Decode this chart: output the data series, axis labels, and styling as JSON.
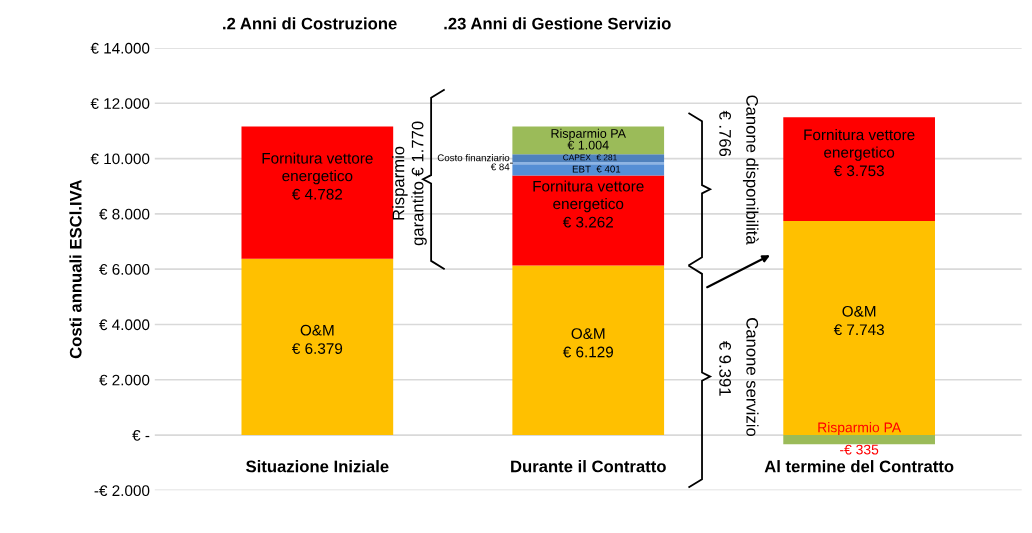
{
  "chart_data": {
    "type": "bar",
    "stacked": true,
    "title": ".2 Anni di Costruzione",
    "subtitle": ".23 Anni di Gestione Servizio",
    "ylabel": "Costi annuali ESCl.IVA",
    "categories": [
      "Situazione Iniziale",
      "Durante il Contratto",
      "Al termine del Contratto"
    ],
    "series": [
      {
        "name": "O&M",
        "color": "#ffc000",
        "values": [
          6379,
          6129,
          7743
        ],
        "value_labels": [
          "€ 6.379",
          "€ 6.129",
          "€ 7.743"
        ]
      },
      {
        "name": "Fornitura vettore energetico",
        "color": "#ff0000",
        "values": [
          4782,
          3262,
          3753
        ],
        "value_labels": [
          "€ 4.782",
          "€ 3.262",
          "€ 3.753"
        ]
      },
      {
        "name": "EBT",
        "color": "#558ed5",
        "values": [
          null,
          401,
          null
        ],
        "value_labels": [
          null,
          "€ 401",
          null
        ]
      },
      {
        "name": "Costo finanziario",
        "color": "#8eb4e3",
        "values": [
          null,
          84,
          null
        ],
        "value_labels": [
          null,
          "€ 84",
          null
        ]
      },
      {
        "name": "CAPEX",
        "color": "#4f81bd",
        "values": [
          null,
          281,
          null
        ],
        "value_labels": [
          null,
          "€ 281",
          null
        ]
      },
      {
        "name": "Risparmio PA",
        "color": "#9bbb59",
        "values": [
          null,
          1004,
          -335
        ],
        "value_labels": [
          null,
          "€ 1.004",
          "-€ 335"
        ]
      }
    ],
    "ylim": [
      -2000,
      14000
    ],
    "yticks": [
      {
        "value": -2000,
        "label": "-€ 2.000"
      },
      {
        "value": 0,
        "label": "€ -"
      },
      {
        "value": 2000,
        "label": "€ 2.000"
      },
      {
        "value": 4000,
        "label": "€ 4.000"
      },
      {
        "value": 6000,
        "label": "€ 6.000"
      },
      {
        "value": 8000,
        "label": "€ 8.000"
      },
      {
        "value": 10000,
        "label": "€ 10.000"
      },
      {
        "value": 12000,
        "label": "€ 12.000"
      },
      {
        "value": 14000,
        "label": "€ 14.000"
      }
    ],
    "grid": "y",
    "legend": false,
    "annotations": [
      "Risparmio\ngarantito € 1.770",
      "€ .766",
      "Canone disponibilità",
      "€ 9.391",
      "Canone servizio"
    ]
  }
}
